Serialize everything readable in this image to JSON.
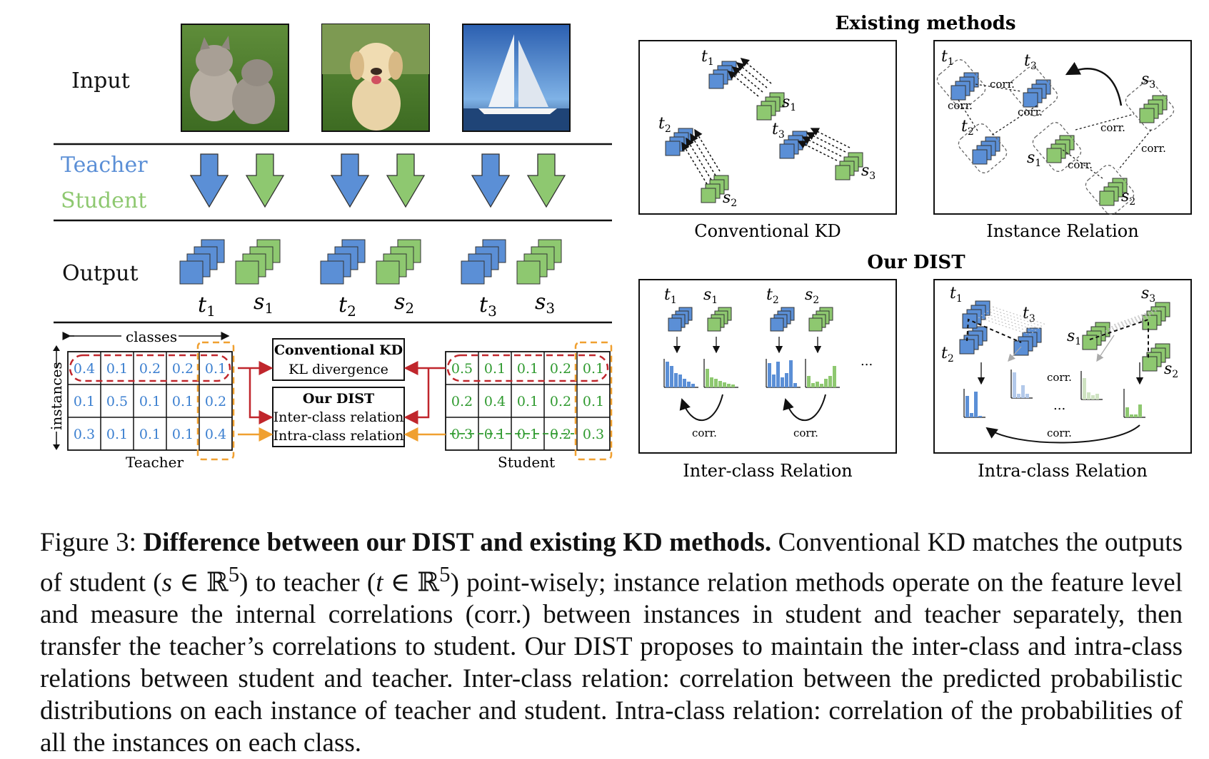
{
  "figure": {
    "row_labels": {
      "input": "Input",
      "teacher": "Teacher",
      "student": "Student",
      "output": "Output"
    },
    "output_labels": [
      {
        "letter": "t",
        "sub": "1"
      },
      {
        "letter": "s",
        "sub": "1"
      },
      {
        "letter": "t",
        "sub": "2"
      },
      {
        "letter": "s",
        "sub": "2"
      },
      {
        "letter": "t",
        "sub": "3"
      },
      {
        "letter": "s",
        "sub": "3"
      }
    ],
    "matrix": {
      "classes_label": "classes",
      "instances_label": "instances",
      "teacher_title": "Teacher",
      "student_title": "Student",
      "teacher_values": [
        [
          "0.4",
          "0.1",
          "0.2",
          "0.2",
          "0.1"
        ],
        [
          "0.1",
          "0.5",
          "0.1",
          "0.1",
          "0.2"
        ],
        [
          "0.3",
          "0.1",
          "0.1",
          "0.1",
          "0.4"
        ]
      ],
      "student_values": [
        [
          "0.5",
          "0.1",
          "0.1",
          "0.2",
          "0.1"
        ],
        [
          "0.2",
          "0.4",
          "0.1",
          "0.2",
          "0.1"
        ],
        [
          "0.3",
          "0.1",
          "0.1",
          "0.2",
          "0.3"
        ]
      ]
    },
    "methods_boxes": {
      "conventional_title": "Conventional KD",
      "conventional_sub": "KL divergence",
      "dist_title": "Our DIST",
      "dist_inter": "Inter-class relation",
      "dist_intra": "Intra-class relation"
    },
    "panels": {
      "existing_header": "Existing methods",
      "our_header": "Our DIST",
      "conventional_kd": "Conventional KD",
      "instance_relation": "Instance Relation",
      "inter_class": "Inter-class Relation",
      "intra_class": "Intra-class Relation",
      "corr_label": "corr.",
      "ellipsis": "..."
    },
    "colors": {
      "teacher_blue": "#5b8fd6",
      "student_green": "#8ec870",
      "conv_red": "#c0262c",
      "dist_orange": "#f0a030",
      "teacher_text": "#3b7fd0",
      "student_text": "#2f9a2f"
    }
  },
  "caption": {
    "label": "Figure 3:",
    "bold": "Difference between our DIST and existing KD methods.",
    "p1": "Conventional KD matches the outputs of student (",
    "s_var": "s",
    "math1": " ∈ ℝ",
    "sup1": "5",
    "p2": ") to teacher (",
    "t_var": "t",
    "math2": " ∈ ℝ",
    "sup2": "5",
    "p3": ") point-wisely; instance relation methods operate on the feature level and measure the internal correlations (corr.) between instances in student and teacher separately, then transfer the teacher’s correlations to student. Our DIST proposes to maintain the inter-class and intra-class relations between student and teacher. Inter-class relation: correlation between the predicted probabilistic distributions on each instance of teacher and student. Intra-class relation: correlation of the probabilities of all the instances on each class."
  }
}
